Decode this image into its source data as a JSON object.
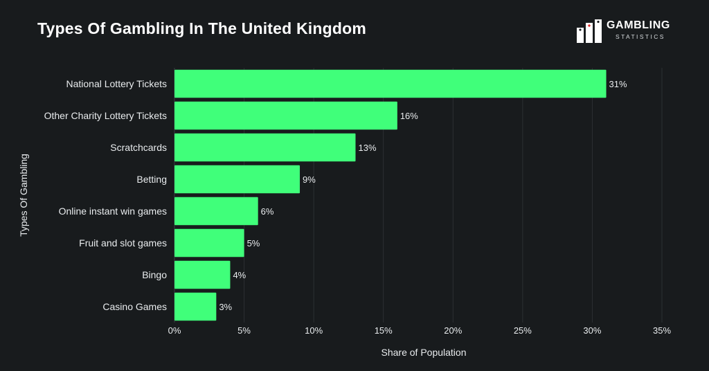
{
  "title": "Types Of Gambling In The United Kingdom",
  "logo": {
    "name": "GAMBLING",
    "sub": "STATISTICS"
  },
  "colors": {
    "background": "#181b1d",
    "bar": "#40ff7a",
    "text": "#e9ecee",
    "grid": "#2c3033"
  },
  "chart_data": {
    "type": "bar",
    "orientation": "horizontal",
    "categories": [
      "National Lottery Tickets",
      "Other Charity Lottery Tickets",
      "Scratchcards",
      "Betting",
      "Online instant win games",
      "Fruit and slot games",
      "Bingo",
      "Casino Games"
    ],
    "values": [
      31,
      16,
      13,
      9,
      6,
      5,
      4,
      3
    ],
    "value_labels": [
      "31%",
      "16%",
      "13%",
      "9%",
      "6%",
      "5%",
      "4%",
      "3%"
    ],
    "xlabel": "Share of Population",
    "ylabel": "Types Of Gambling",
    "xlim": [
      0,
      35
    ],
    "xticks": [
      0,
      5,
      10,
      15,
      20,
      25,
      30,
      35
    ],
    "xtick_labels": [
      "0%",
      "5%",
      "10%",
      "15%",
      "20%",
      "25%",
      "30%",
      "35%"
    ],
    "grid": true,
    "legend": "none"
  }
}
